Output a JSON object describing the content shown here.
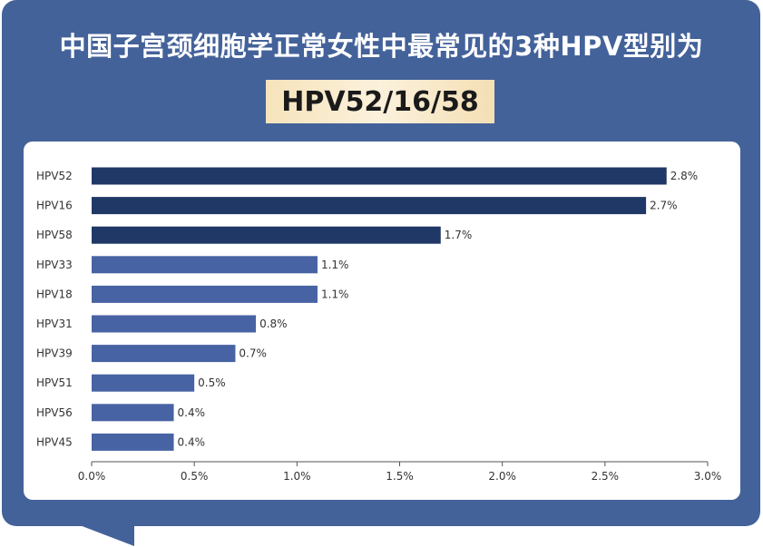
{
  "header": {
    "title": "中国子宫颈细胞学正常女性中最常见的3种HPV型别为",
    "highlight": "HPV52/16/58"
  },
  "colors": {
    "background": "#44629a",
    "bar_dark": "#203866",
    "bar_light": "#4863a3",
    "highlight_bg": "#f7e6c2"
  },
  "chart_data": {
    "type": "bar",
    "orientation": "horizontal",
    "categories": [
      "HPV52",
      "HPV16",
      "HPV58",
      "HPV33",
      "HPV18",
      "HPV31",
      "HPV39",
      "HPV51",
      "HPV56",
      "HPV45"
    ],
    "values": [
      2.8,
      2.7,
      1.7,
      1.1,
      1.1,
      0.8,
      0.7,
      0.5,
      0.4,
      0.4
    ],
    "data_labels": [
      "2.8%",
      "2.7%",
      "1.7%",
      "1.1%",
      "1.1%",
      "0.8%",
      "0.7%",
      "0.5%",
      "0.4%",
      "0.4%"
    ],
    "highlighted": [
      true,
      true,
      true,
      false,
      false,
      false,
      false,
      false,
      false,
      false
    ],
    "xlim": [
      0,
      3.0
    ],
    "xticks": [
      0,
      0.5,
      1.0,
      1.5,
      2.0,
      2.5,
      3.0
    ],
    "xtick_labels": [
      "0.0%",
      "0.5%",
      "1.0%",
      "1.5%",
      "2.0%",
      "2.5%",
      "3.0%"
    ],
    "xlabel": "",
    "ylabel": "",
    "grid": false,
    "legend": "none"
  }
}
